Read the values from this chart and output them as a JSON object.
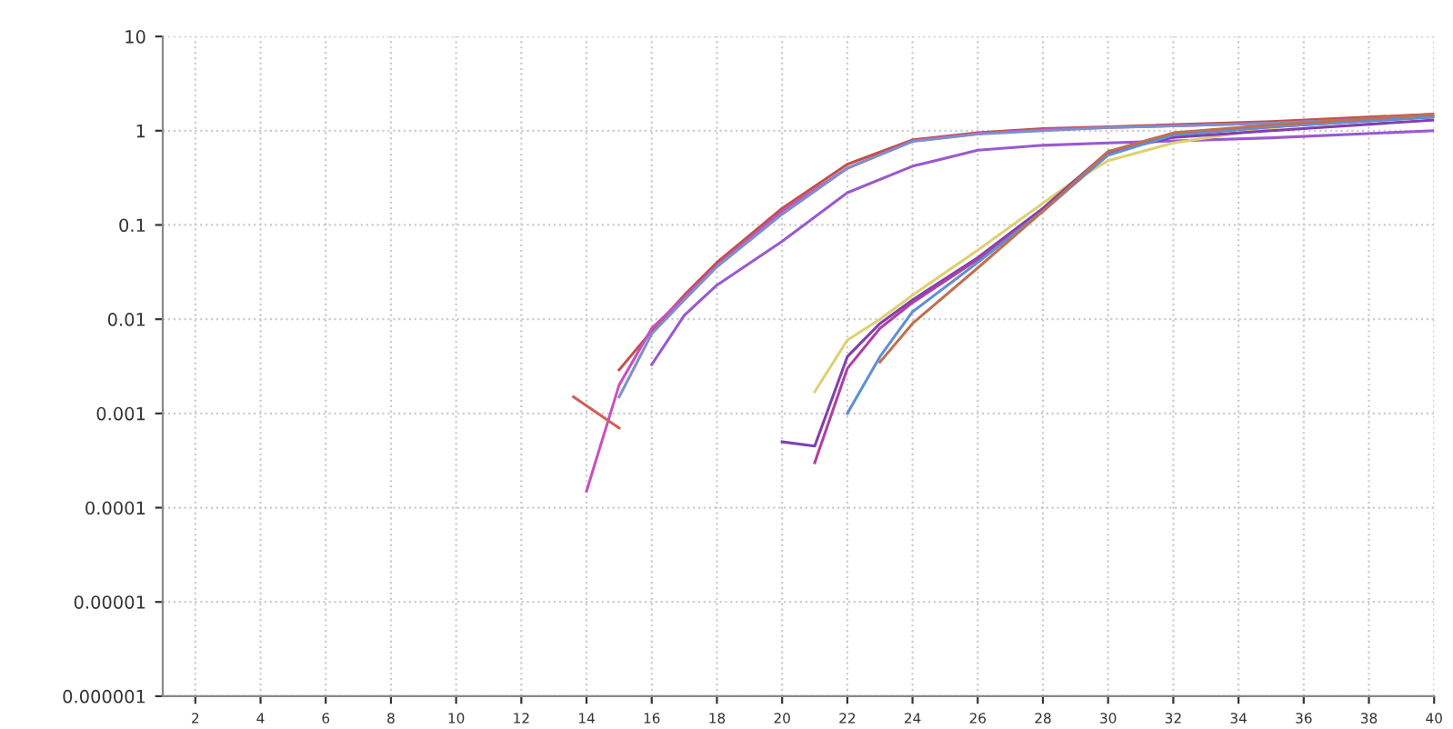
{
  "chart_data": {
    "type": "line",
    "log": "y",
    "grid": true,
    "marker": "none",
    "line_style": "solid",
    "xlim": [
      1,
      40
    ],
    "xticks": [
      2,
      4,
      6,
      8,
      10,
      12,
      14,
      16,
      18,
      20,
      22,
      24,
      26,
      28,
      30,
      32,
      34,
      36,
      38,
      40
    ],
    "ylim": [
      1e-06,
      10
    ],
    "yticks": [
      {
        "value": 1e-06,
        "label": "0.000001"
      },
      {
        "value": 1e-05,
        "label": "0.00001"
      },
      {
        "value": 0.0001,
        "label": "0.0001"
      },
      {
        "value": 0.001,
        "label": "0.001"
      },
      {
        "value": 0.01,
        "label": "0.01"
      },
      {
        "value": 0.1,
        "label": "0.1"
      },
      {
        "value": 1,
        "label": "1"
      },
      {
        "value": 10,
        "label": "10"
      }
    ],
    "series": [
      {
        "color": "#c0504d",
        "x": [
          15,
          16,
          17,
          18,
          20,
          22,
          24,
          26,
          28,
          30,
          35,
          40
        ],
        "values": [
          0.0029,
          0.0075,
          0.018,
          0.04,
          0.15,
          0.44,
          0.8,
          0.95,
          1.05,
          1.1,
          1.25,
          1.5
        ]
      },
      {
        "color": "#c850c0",
        "x": [
          14,
          15,
          16,
          17,
          18,
          20,
          22,
          24,
          26,
          28,
          30,
          35,
          40
        ],
        "values": [
          0.00015,
          0.002,
          0.008,
          0.017,
          0.037,
          0.14,
          0.4,
          0.78,
          0.93,
          1.02,
          1.08,
          1.2,
          1.45
        ]
      },
      {
        "color": "#d0605a",
        "x": [
          13.6,
          15
        ],
        "values": [
          0.0015,
          0.0007
        ]
      },
      {
        "color": "#7f8fc8",
        "x": [
          15,
          16,
          17,
          18,
          20,
          22,
          24,
          26,
          28,
          30,
          35,
          40
        ],
        "values": [
          0.0015,
          0.007,
          0.016,
          0.036,
          0.13,
          0.4,
          0.77,
          0.92,
          1.0,
          1.08,
          1.2,
          1.4
        ]
      },
      {
        "color": "#9b59d0",
        "x": [
          16,
          17,
          18,
          20,
          22,
          24,
          26,
          28,
          30,
          35,
          40
        ],
        "values": [
          0.0033,
          0.011,
          0.023,
          0.067,
          0.22,
          0.42,
          0.62,
          0.7,
          0.74,
          0.84,
          1.0
        ]
      },
      {
        "color": "#e0d070",
        "x": [
          21,
          22,
          23,
          24,
          26,
          28,
          29,
          30,
          32,
          36,
          40
        ],
        "values": [
          0.0017,
          0.006,
          0.01,
          0.018,
          0.054,
          0.17,
          0.3,
          0.48,
          0.74,
          1.2,
          1.4
        ]
      },
      {
        "color": "#8040b0",
        "x": [
          20,
          21,
          22,
          23,
          24,
          26,
          28,
          29,
          30,
          32,
          35,
          40
        ],
        "values": [
          0.0005,
          0.00045,
          0.004,
          0.009,
          0.016,
          0.045,
          0.15,
          0.3,
          0.6,
          0.85,
          1.0,
          1.3
        ]
      },
      {
        "color": "#b040a0",
        "x": [
          21,
          22,
          23,
          24,
          26,
          28,
          30,
          32,
          35,
          40
        ],
        "values": [
          0.0003,
          0.003,
          0.008,
          0.015,
          0.043,
          0.14,
          0.58,
          0.9,
          1.1,
          1.4
        ]
      },
      {
        "color": "#6090d0",
        "x": [
          22,
          23,
          24,
          26,
          28,
          30,
          32,
          35,
          40
        ],
        "values": [
          0.001,
          0.004,
          0.012,
          0.04,
          0.14,
          0.55,
          0.9,
          1.1,
          1.4
        ]
      },
      {
        "color": "#c07050",
        "x": [
          23,
          24,
          26,
          28,
          30,
          32,
          35,
          40
        ],
        "values": [
          0.0035,
          0.009,
          0.035,
          0.14,
          0.6,
          0.95,
          1.15,
          1.5
        ]
      }
    ]
  }
}
